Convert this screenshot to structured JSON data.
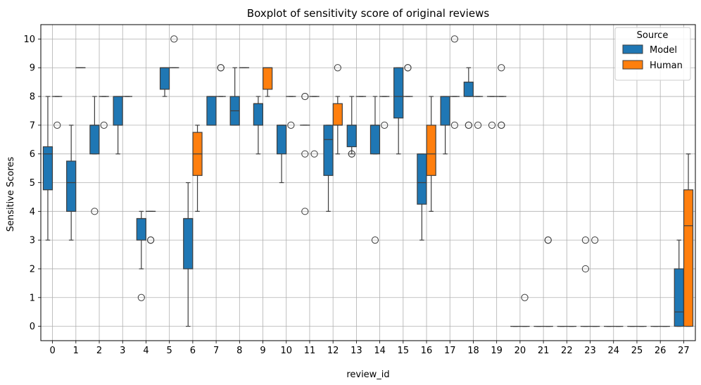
{
  "chart_data": {
    "type": "boxplot",
    "title": "Boxplot of sensitivity score of original reviews",
    "xlabel": "review_id",
    "ylabel": "Sensitive Scores",
    "ylim": [
      -0.5,
      10.5
    ],
    "yticks": [
      0,
      1,
      2,
      3,
      4,
      5,
      6,
      7,
      8,
      9,
      10
    ],
    "categories": [
      "0",
      "1",
      "2",
      "3",
      "4",
      "5",
      "6",
      "7",
      "8",
      "9",
      "10",
      "11",
      "12",
      "13",
      "14",
      "15",
      "16",
      "17",
      "18",
      "19",
      "20",
      "21",
      "22",
      "23",
      "24",
      "25",
      "26",
      "27"
    ],
    "grid": true,
    "legend": {
      "title": "Source",
      "placement": "top-right"
    },
    "series": [
      {
        "name": "Model",
        "color": "#1f77b4",
        "boxes": [
          {
            "q1": 4.75,
            "median": 6,
            "q3": 6.25,
            "whislo": 3,
            "whishi": 8,
            "fliers": []
          },
          {
            "q1": 4,
            "median": 5,
            "q3": 5.75,
            "whislo": 3,
            "whishi": 7,
            "fliers": []
          },
          {
            "q1": 6,
            "median": 7,
            "q3": 7,
            "whislo": 6,
            "whishi": 8,
            "fliers": [
              4
            ]
          },
          {
            "q1": 7,
            "median": 8,
            "q3": 8,
            "whislo": 6,
            "whishi": 8,
            "fliers": []
          },
          {
            "q1": 3,
            "median": 3.75,
            "q3": 3.75,
            "whislo": 2,
            "whishi": 4,
            "fliers": [
              1
            ]
          },
          {
            "q1": 8.25,
            "median": 9,
            "q3": 9,
            "whislo": 8,
            "whishi": 9,
            "fliers": []
          },
          {
            "q1": 2,
            "median": 3.75,
            "q3": 3.75,
            "whislo": 0,
            "whishi": 5,
            "fliers": []
          },
          {
            "q1": 7,
            "median": 8,
            "q3": 8,
            "whislo": 7,
            "whishi": 8,
            "fliers": []
          },
          {
            "q1": 7,
            "median": 7.5,
            "q3": 8,
            "whislo": 7,
            "whishi": 9,
            "fliers": []
          },
          {
            "q1": 7,
            "median": 7.75,
            "q3": 7.75,
            "whislo": 6,
            "whishi": 8,
            "fliers": []
          },
          {
            "q1": 6,
            "median": 7,
            "q3": 7,
            "whislo": 5,
            "whishi": 7,
            "fliers": []
          },
          {
            "q1": 7,
            "median": 7,
            "q3": 7,
            "whislo": 7,
            "whishi": 7,
            "fliers": [
              4,
              6,
              8,
              8
            ]
          },
          {
            "q1": 5.25,
            "median": 6.5,
            "q3": 7,
            "whislo": 4,
            "whishi": 7,
            "fliers": []
          },
          {
            "q1": 6.25,
            "median": 7,
            "q3": 7,
            "whislo": 6,
            "whishi": 8,
            "fliers": [
              6,
              6
            ]
          },
          {
            "q1": 6,
            "median": 7,
            "q3": 7,
            "whislo": 6,
            "whishi": 8,
            "fliers": [
              3
            ]
          },
          {
            "q1": 7.25,
            "median": 8,
            "q3": 9,
            "whislo": 6,
            "whishi": 9,
            "fliers": []
          },
          {
            "q1": 4.25,
            "median": 5,
            "q3": 6,
            "whislo": 3,
            "whishi": 6,
            "fliers": []
          },
          {
            "q1": 7,
            "median": 8,
            "q3": 8,
            "whislo": 6,
            "whishi": 8,
            "fliers": []
          },
          {
            "q1": 8,
            "median": 8,
            "q3": 8.5,
            "whislo": 8,
            "whishi": 9,
            "fliers": [
              7,
              7
            ]
          },
          {
            "q1": 8,
            "median": 8,
            "q3": 8,
            "whislo": 8,
            "whishi": 8,
            "fliers": [
              7
            ]
          },
          {
            "q1": 0,
            "median": 0,
            "q3": 0,
            "whislo": 0,
            "whishi": 0,
            "fliers": []
          },
          {
            "q1": 0,
            "median": 0,
            "q3": 0,
            "whislo": 0,
            "whishi": 0,
            "fliers": []
          },
          {
            "q1": 0,
            "median": 0,
            "q3": 0,
            "whislo": 0,
            "whishi": 0,
            "fliers": []
          },
          {
            "q1": 0,
            "median": 0,
            "q3": 0,
            "whislo": 0,
            "whishi": 0,
            "fliers": [
              2,
              3
            ]
          },
          {
            "q1": 0,
            "median": 0,
            "q3": 0,
            "whislo": 0,
            "whishi": 0,
            "fliers": []
          },
          {
            "q1": 0,
            "median": 0,
            "q3": 0,
            "whislo": 0,
            "whishi": 0,
            "fliers": []
          },
          {
            "q1": 0,
            "median": 0,
            "q3": 0,
            "whislo": 0,
            "whishi": 0,
            "fliers": []
          },
          {
            "q1": 0,
            "median": 0.5,
            "q3": 2,
            "whislo": 0,
            "whishi": 3,
            "fliers": []
          }
        ]
      },
      {
        "name": "Human",
        "color": "#ff7f0e",
        "boxes": [
          {
            "q1": 8,
            "median": 8,
            "q3": 8,
            "whislo": 8,
            "whishi": 8,
            "fliers": [
              7
            ]
          },
          {
            "q1": 9,
            "median": 9,
            "q3": 9,
            "whislo": 9,
            "whishi": 9,
            "fliers": []
          },
          {
            "q1": 8,
            "median": 8,
            "q3": 8,
            "whislo": 8,
            "whishi": 8,
            "fliers": [
              7
            ]
          },
          {
            "q1": 8,
            "median": 8,
            "q3": 8,
            "whislo": 8,
            "whishi": 8,
            "fliers": []
          },
          {
            "q1": 4,
            "median": 4,
            "q3": 4,
            "whislo": 4,
            "whishi": 4,
            "fliers": [
              3,
              3
            ]
          },
          {
            "q1": 9,
            "median": 9,
            "q3": 9,
            "whislo": 9,
            "whishi": 9,
            "fliers": [
              10
            ]
          },
          {
            "q1": 5.25,
            "median": 6,
            "q3": 6.75,
            "whislo": 4,
            "whishi": 7,
            "fliers": []
          },
          {
            "q1": 8,
            "median": 8,
            "q3": 8,
            "whislo": 8,
            "whishi": 8,
            "fliers": [
              9,
              9
            ]
          },
          {
            "q1": 9,
            "median": 9,
            "q3": 9,
            "whislo": 9,
            "whishi": 9,
            "fliers": []
          },
          {
            "q1": 8.25,
            "median": 9,
            "q3": 9,
            "whislo": 8,
            "whishi": 9,
            "fliers": []
          },
          {
            "q1": 8,
            "median": 8,
            "q3": 8,
            "whislo": 8,
            "whishi": 8,
            "fliers": [
              7
            ]
          },
          {
            "q1": 8,
            "median": 8,
            "q3": 8,
            "whislo": 8,
            "whishi": 8,
            "fliers": [
              6
            ]
          },
          {
            "q1": 7,
            "median": 7,
            "q3": 7.75,
            "whislo": 6,
            "whishi": 8,
            "fliers": [
              9
            ]
          },
          {
            "q1": 8,
            "median": 8,
            "q3": 8,
            "whislo": 8,
            "whishi": 8,
            "fliers": []
          },
          {
            "q1": 8,
            "median": 8,
            "q3": 8,
            "whislo": 8,
            "whishi": 8,
            "fliers": [
              7
            ]
          },
          {
            "q1": 8,
            "median": 8,
            "q3": 8,
            "whislo": 8,
            "whishi": 8,
            "fliers": [
              9,
              9
            ]
          },
          {
            "q1": 5.25,
            "median": 6,
            "q3": 7,
            "whislo": 4,
            "whishi": 8,
            "fliers": []
          },
          {
            "q1": 8,
            "median": 8,
            "q3": 8,
            "whislo": 8,
            "whishi": 8,
            "fliers": [
              7,
              10
            ]
          },
          {
            "q1": 8,
            "median": 8,
            "q3": 8,
            "whislo": 8,
            "whishi": 8,
            "fliers": [
              7
            ]
          },
          {
            "q1": 8,
            "median": 8,
            "q3": 8,
            "whislo": 8,
            "whishi": 8,
            "fliers": [
              7,
              7,
              9
            ]
          },
          {
            "q1": 0,
            "median": 0,
            "q3": 0,
            "whislo": 0,
            "whishi": 0,
            "fliers": [
              1
            ]
          },
          {
            "q1": 0,
            "median": 0,
            "q3": 0,
            "whislo": 0,
            "whishi": 0,
            "fliers": [
              3,
              3
            ]
          },
          {
            "q1": 0,
            "median": 0,
            "q3": 0,
            "whislo": 0,
            "whishi": 0,
            "fliers": []
          },
          {
            "q1": 0,
            "median": 0,
            "q3": 0,
            "whislo": 0,
            "whishi": 0,
            "fliers": [
              3
            ]
          },
          {
            "q1": 0,
            "median": 0,
            "q3": 0,
            "whislo": 0,
            "whishi": 0,
            "fliers": []
          },
          {
            "q1": 0,
            "median": 0,
            "q3": 0,
            "whislo": 0,
            "whishi": 0,
            "fliers": []
          },
          {
            "q1": 0,
            "median": 0,
            "q3": 0,
            "whislo": 0,
            "whishi": 0,
            "fliers": []
          },
          {
            "q1": 0,
            "median": 3.5,
            "q3": 4.75,
            "whislo": 0,
            "whishi": 6,
            "fliers": []
          }
        ]
      }
    ]
  }
}
